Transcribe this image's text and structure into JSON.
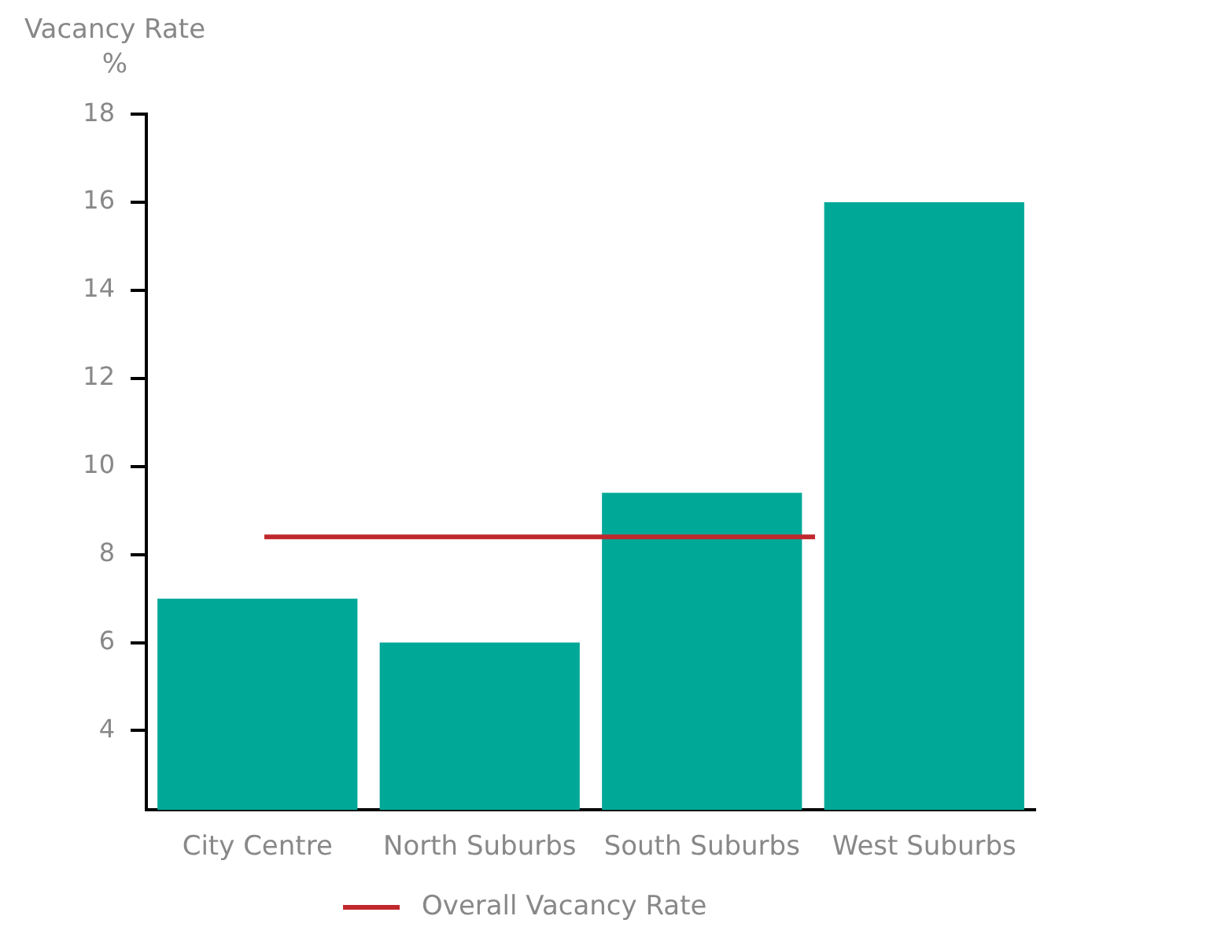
{
  "chart_data": {
    "type": "bar",
    "ylabel": "Vacancy Rate %",
    "categories": [
      "City Centre",
      "North Suburbs",
      "South Suburbs",
      "West Suburbs"
    ],
    "values": [
      7,
      6,
      9.4,
      16
    ],
    "color": "#00a898",
    "ylim": [
      2.2,
      18
    ],
    "yticks": [
      4,
      6,
      8,
      10,
      12,
      14,
      16,
      18
    ],
    "grid": false,
    "legend": "bottom",
    "ref_lines": [
      {
        "axis": "y",
        "value": 8.4,
        "label": "Overall Vacancy Rate",
        "color": "#c0282d",
        "line_style": "solid"
      }
    ]
  }
}
